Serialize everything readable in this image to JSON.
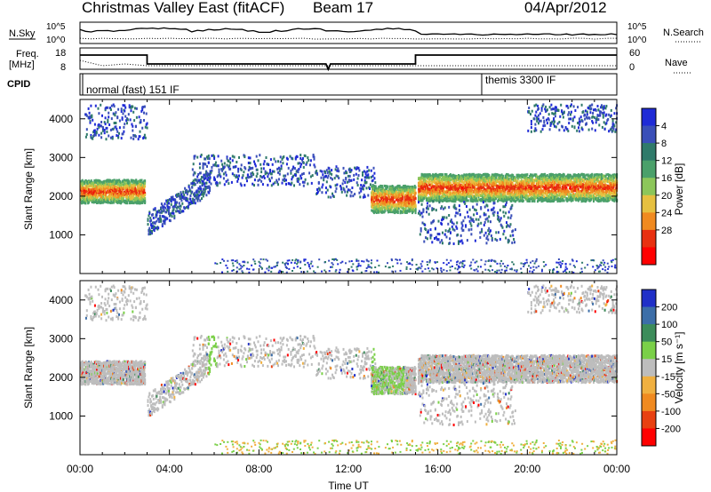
{
  "header": {
    "title": "Christmas Valley East (fitACF)",
    "beam": "Beam 17",
    "date": "04/Apr/2012"
  },
  "status_panels": {
    "nsky_label": "N.Sky",
    "nsearch_label": "N.Search",
    "noise_left_ticks": [
      "10^5",
      "10^0"
    ],
    "noise_right_ticks": [
      "10^5",
      "10^0"
    ],
    "freq_label_1": "Freq.",
    "freq_label_2": "[MHz]",
    "freq_ticks": [
      "18",
      "8"
    ],
    "nave_label": "Nave",
    "nave_ticks": [
      "60",
      "0"
    ],
    "cpid_label": "CPID",
    "cpid_1": "normal (fast) 151 IF",
    "cpid_2": "themis 3300 IF"
  },
  "chart_data": [
    {
      "type": "heatmap",
      "name": "power",
      "ylabel": "Slant Range [km]",
      "xlabel": "",
      "ylim": [
        0,
        4500
      ],
      "xlim_hours": [
        0,
        24
      ],
      "yticks": [
        "1000",
        "2000",
        "3000",
        "4000"
      ],
      "colorbar_label": "Power [dB]",
      "colorbar_ticks": [
        "4",
        "8",
        "12",
        "16",
        "20",
        "24",
        "28"
      ],
      "colorbar_colors": [
        "#1f2bd6",
        "#3a4fb8",
        "#2f7a6a",
        "#4aa06a",
        "#8cc65a",
        "#e6c040",
        "#f08a20",
        "#e83010",
        "#ff0000"
      ]
    },
    {
      "type": "heatmap",
      "name": "velocity",
      "ylabel": "Slant Range [km]",
      "xlabel": "Time UT",
      "ylim": [
        0,
        4500
      ],
      "xlim_hours": [
        0,
        24
      ],
      "yticks": [
        "1000",
        "2000",
        "3000",
        "4000"
      ],
      "xticks": [
        "00:00",
        "04:00",
        "08:00",
        "12:00",
        "16:00",
        "20:00",
        "00:00"
      ],
      "colorbar_label": "Velocity [m s⁻¹]",
      "colorbar_ticks": [
        "200",
        "100",
        "50",
        "15",
        "-15",
        "-50",
        "-100",
        "-200"
      ],
      "colorbar_colors": [
        "#2030c8",
        "#3c6ea8",
        "#3c8c5a",
        "#7ad048",
        "#bdbdbd",
        "#f0b040",
        "#f08a20",
        "#e84010",
        "#ff0000"
      ]
    }
  ]
}
